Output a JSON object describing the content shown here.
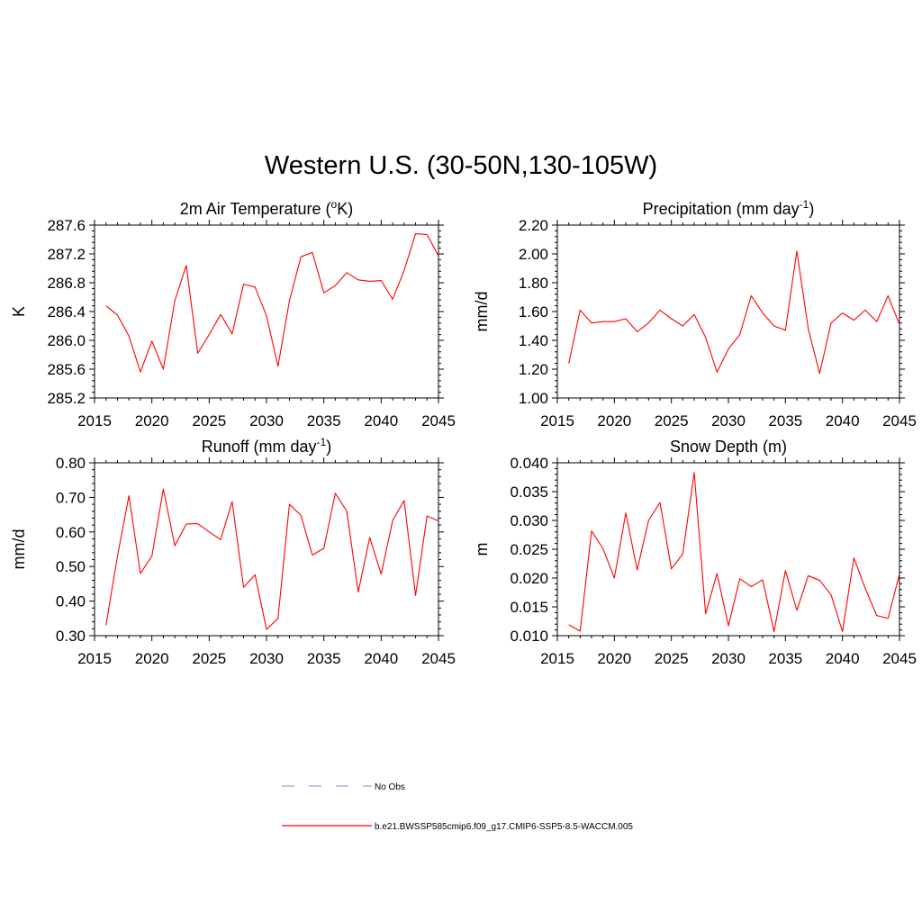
{
  "title": "Western U.S. (30-50N,130-105W)",
  "colors": {
    "line": "#ff0000",
    "obs": "#a0a0e0",
    "axis": "#000000"
  },
  "legend": [
    {
      "label": "No Obs",
      "style": "dashed",
      "color": "#a0a0e0"
    },
    {
      "label": "b.e21.BWSSP585cmip6.f09_g17.CMIP6-SSP5-8.5-WACCM.005",
      "style": "solid",
      "color": "#ff0000"
    }
  ],
  "chart_data": [
    {
      "type": "line",
      "title_main": "2m Air Temperature (",
      "title_sup": "o",
      "title_end": "K)",
      "ylabel": "K",
      "xlim": [
        2015,
        2045
      ],
      "ylim": [
        285.2,
        287.6
      ],
      "xticks": [
        "2015",
        "2020",
        "2025",
        "2030",
        "2035",
        "2040",
        "2045"
      ],
      "yticks": [
        "285.2",
        "285.6",
        "286.0",
        "286.4",
        "286.8",
        "287.2",
        "287.6"
      ],
      "x": [
        2016,
        2017,
        2018,
        2019,
        2020,
        2021,
        2022,
        2023,
        2024,
        2025,
        2026,
        2027,
        2028,
        2029,
        2030,
        2031,
        2032,
        2033,
        2034,
        2035,
        2036,
        2037,
        2038,
        2039,
        2040,
        2041,
        2042,
        2043,
        2044,
        2045
      ],
      "series": [
        {
          "values": [
            286.48,
            286.35,
            286.06,
            285.56,
            285.99,
            285.6,
            286.55,
            287.04,
            285.82,
            286.08,
            286.36,
            286.09,
            286.78,
            286.74,
            286.34,
            285.64,
            286.55,
            287.16,
            287.22,
            286.66,
            286.76,
            286.94,
            286.84,
            286.82,
            286.83,
            286.57,
            286.97,
            287.48,
            287.47,
            287.17
          ]
        }
      ]
    },
    {
      "type": "line",
      "title_main": "Precipitation (mm day",
      "title_sup": "-1",
      "title_end": ")",
      "ylabel": "mm/d",
      "xlim": [
        2015,
        2045
      ],
      "ylim": [
        1.0,
        2.2
      ],
      "xticks": [
        "2015",
        "2020",
        "2025",
        "2030",
        "2035",
        "2040",
        "2045"
      ],
      "yticks": [
        "1.00",
        "1.20",
        "1.40",
        "1.60",
        "1.80",
        "2.00",
        "2.20"
      ],
      "x": [
        2016,
        2017,
        2018,
        2019,
        2020,
        2021,
        2022,
        2023,
        2024,
        2025,
        2026,
        2027,
        2028,
        2029,
        2030,
        2031,
        2032,
        2033,
        2034,
        2035,
        2036,
        2037,
        2038,
        2039,
        2040,
        2041,
        2042,
        2043,
        2044,
        2045
      ],
      "series": [
        {
          "values": [
            1.24,
            1.61,
            1.52,
            1.53,
            1.53,
            1.55,
            1.46,
            1.52,
            1.61,
            1.55,
            1.5,
            1.58,
            1.42,
            1.18,
            1.34,
            1.44,
            1.71,
            1.59,
            1.5,
            1.47,
            2.02,
            1.48,
            1.17,
            1.52,
            1.59,
            1.54,
            1.61,
            1.53,
            1.71,
            1.51
          ]
        }
      ]
    },
    {
      "type": "line",
      "title_main": "Runoff (mm day",
      "title_sup": "-1",
      "title_end": ")",
      "ylabel": "mm/d",
      "xlim": [
        2015,
        2045
      ],
      "ylim": [
        0.3,
        0.8
      ],
      "xticks": [
        "2015",
        "2020",
        "2025",
        "2030",
        "2035",
        "2040",
        "2045"
      ],
      "yticks": [
        "0.30",
        "0.40",
        "0.50",
        "0.60",
        "0.70",
        "0.80"
      ],
      "x": [
        2016,
        2017,
        2018,
        2019,
        2020,
        2021,
        2022,
        2023,
        2024,
        2025,
        2026,
        2027,
        2028,
        2029,
        2030,
        2031,
        2032,
        2033,
        2034,
        2035,
        2036,
        2037,
        2038,
        2039,
        2040,
        2041,
        2042,
        2043,
        2044,
        2045
      ],
      "series": [
        {
          "values": [
            0.33,
            0.53,
            0.705,
            0.48,
            0.53,
            0.724,
            0.56,
            0.623,
            0.624,
            0.6,
            0.578,
            0.688,
            0.44,
            0.476,
            0.318,
            0.35,
            0.68,
            0.648,
            0.533,
            0.553,
            0.712,
            0.66,
            0.426,
            0.584,
            0.478,
            0.633,
            0.691,
            0.416,
            0.646,
            0.632
          ]
        }
      ]
    },
    {
      "type": "line",
      "title_main": "Snow Depth (m)",
      "title_sup": "",
      "title_end": "",
      "ylabel": "m",
      "xlim": [
        2015,
        2045
      ],
      "ylim": [
        0.01,
        0.04
      ],
      "xticks": [
        "2015",
        "2020",
        "2025",
        "2030",
        "2035",
        "2040",
        "2045"
      ],
      "yticks": [
        "0.010",
        "0.015",
        "0.020",
        "0.025",
        "0.030",
        "0.035",
        "0.040"
      ],
      "x": [
        2016,
        2017,
        2018,
        2019,
        2020,
        2021,
        2022,
        2023,
        2024,
        2025,
        2026,
        2027,
        2028,
        2029,
        2030,
        2031,
        2032,
        2033,
        2034,
        2035,
        2036,
        2037,
        2038,
        2039,
        2040,
        2041,
        2042,
        2043,
        2044,
        2045
      ],
      "series": [
        {
          "values": [
            0.0119,
            0.0108,
            0.0282,
            0.0251,
            0.02,
            0.0313,
            0.0214,
            0.03,
            0.0331,
            0.0216,
            0.0242,
            0.0383,
            0.0138,
            0.0208,
            0.0117,
            0.0199,
            0.0185,
            0.0197,
            0.0107,
            0.0213,
            0.0144,
            0.0204,
            0.0196,
            0.0171,
            0.0107,
            0.0235,
            0.0182,
            0.0135,
            0.013,
            0.0207
          ]
        }
      ]
    }
  ]
}
